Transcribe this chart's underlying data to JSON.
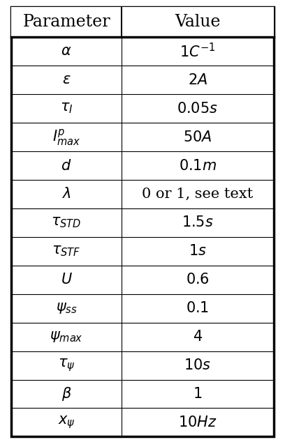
{
  "title_param": "Parameter",
  "title_value": "Value",
  "rows": [
    [
      "$\\alpha$",
      "$1C^{-1}$"
    ],
    [
      "$\\epsilon$",
      "$2A$"
    ],
    [
      "$\\tau_I$",
      "$0.05s$"
    ],
    [
      "$I_{max}^p$",
      "$50A$"
    ],
    [
      "$d$",
      "$0.1m$"
    ],
    [
      "$\\lambda$",
      "0 or 1, see text"
    ],
    [
      "$\\tau_{STD}$",
      "$1.5s$"
    ],
    [
      "$\\tau_{STF}$",
      "$1s$"
    ],
    [
      "$U$",
      "$0.6$"
    ],
    [
      "$\\psi_{ss}$",
      "$0.1$"
    ],
    [
      "$\\psi_{max}$",
      "$4$"
    ],
    [
      "$\\tau_{\\psi}$",
      "$10s$"
    ],
    [
      "$\\beta$",
      "$1$"
    ],
    [
      "$x_{\\psi}$",
      "$10Hz$"
    ]
  ],
  "bg_color": "#ffffff",
  "text_color": "#000000",
  "border_color": "#000000",
  "header_fontsize": 17,
  "cell_fontsize": 15,
  "fig_width": 4.08,
  "fig_height": 6.34
}
